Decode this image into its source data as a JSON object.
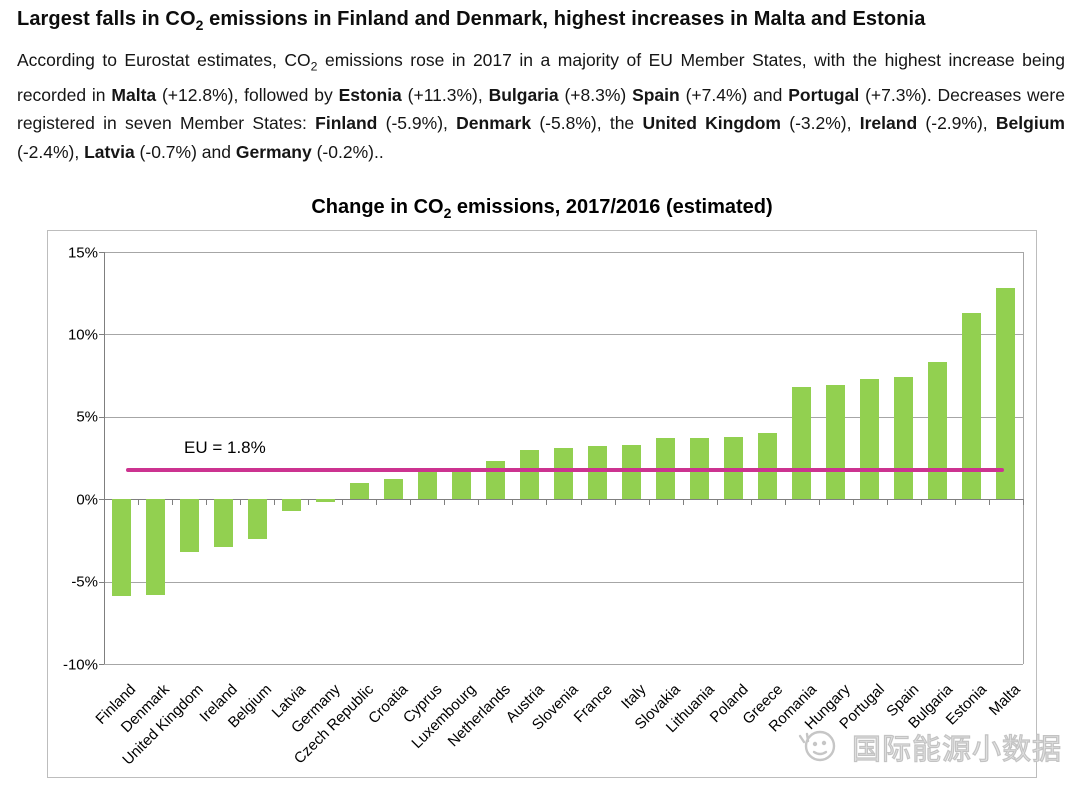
{
  "article": {
    "headline": {
      "pre": "Largest falls in CO",
      "sub": "2",
      "post": " emissions in Finland and Denmark, highest increases in Malta and Estonia"
    },
    "body_segments": [
      {
        "t": "According to Eurostat estimates, CO",
        "bold": false
      },
      {
        "t": "2",
        "bold": false,
        "sub": true
      },
      {
        "t": " emissions rose in 2017 in a majority of EU Member States, with the highest increase being recorded in ",
        "bold": false
      },
      {
        "t": "Malta",
        "bold": true
      },
      {
        "t": " (+12.8%), followed by ",
        "bold": false
      },
      {
        "t": "Estonia",
        "bold": true
      },
      {
        "t": " (+11.3%), ",
        "bold": false
      },
      {
        "t": "Bulgaria",
        "bold": true
      },
      {
        "t": " (+8.3%) ",
        "bold": false
      },
      {
        "t": "Spain",
        "bold": true
      },
      {
        "t": " (+7.4%) and ",
        "bold": false
      },
      {
        "t": "Portugal",
        "bold": true
      },
      {
        "t": " (+7.3%). Decreases were registered in seven Member States: ",
        "bold": false
      },
      {
        "t": "Finland",
        "bold": true
      },
      {
        "t": " (-5.9%), ",
        "bold": false
      },
      {
        "t": "Denmark",
        "bold": true
      },
      {
        "t": " (-5.8%), the ",
        "bold": false
      },
      {
        "t": "United Kingdom",
        "bold": true
      },
      {
        "t": " (-3.2%), ",
        "bold": false
      },
      {
        "t": "Ireland",
        "bold": true
      },
      {
        "t": " (-2.9%), ",
        "bold": false
      },
      {
        "t": "Belgium",
        "bold": true
      },
      {
        "t": " (-2.4%), ",
        "bold": false
      },
      {
        "t": "Latvia",
        "bold": true
      },
      {
        "t": " (-0.7%) and ",
        "bold": false
      },
      {
        "t": "Germany",
        "bold": true
      },
      {
        "t": " (-0.2%)..",
        "bold": false
      }
    ]
  },
  "chart": {
    "title": {
      "pre": "Change in CO",
      "sub": "2",
      "post": " emissions, 2017/2016 (estimated)"
    },
    "watermark_text": "国际能源小数据"
  },
  "chart_data": {
    "type": "bar",
    "title": "Change in CO2 emissions, 2017/2016 (estimated)",
    "categories": [
      "Finland",
      "Denmark",
      "United Kingdom",
      "Ireland",
      "Belgium",
      "Latvia",
      "Germany",
      "Czech Republic",
      "Croatia",
      "Cyprus",
      "Luxembourg",
      "Netherlands",
      "Austria",
      "Slovenia",
      "France",
      "Italy",
      "Slovakia",
      "Lithuania",
      "Poland",
      "Greece",
      "Romania",
      "Hungary",
      "Portugal",
      "Spain",
      "Bulgaria",
      "Estonia",
      "Malta"
    ],
    "values": [
      -5.9,
      -5.8,
      -3.2,
      -2.9,
      -2.4,
      -0.7,
      -0.2,
      1.0,
      1.2,
      1.8,
      1.8,
      2.3,
      3.0,
      3.1,
      3.2,
      3.3,
      3.7,
      3.7,
      3.8,
      4.0,
      6.8,
      6.9,
      7.3,
      7.4,
      8.3,
      11.3,
      12.8
    ],
    "xlabel": "",
    "ylabel": "",
    "ylim": [
      -10,
      15
    ],
    "y_ticks": [
      {
        "label": "15%",
        "value": 15
      },
      {
        "label": "10%",
        "value": 10
      },
      {
        "label": "5%",
        "value": 5
      },
      {
        "label": "0%",
        "value": 0
      },
      {
        "label": "-5%",
        "value": -5
      },
      {
        "label": "-10%",
        "value": -10
      }
    ],
    "grid": true,
    "legend": "none",
    "bar_color": "#92D050",
    "reference_line": {
      "label": "EU = 1.8%",
      "value": 1.8,
      "color": "#CC3390"
    }
  }
}
